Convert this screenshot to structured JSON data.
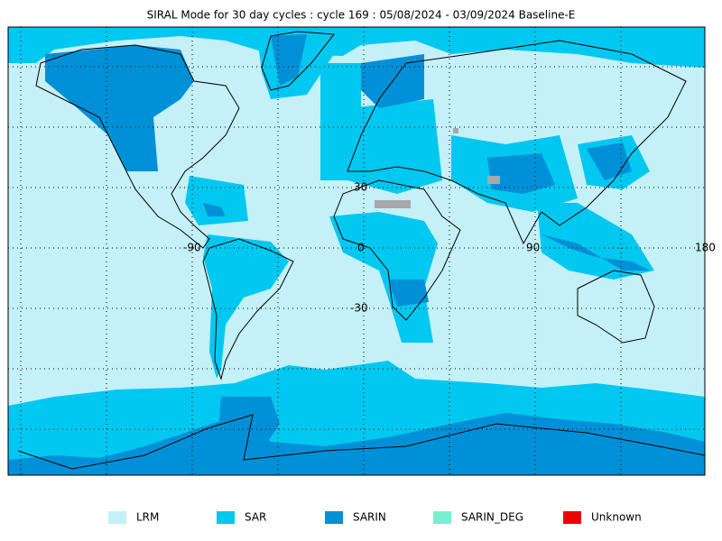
{
  "title": "SIRAL Mode for 30 day cycles : cycle 169 : 05/08/2024 - 03/09/2024 Baseline-E",
  "grid_labels": {
    "lat": [
      "30",
      "-30"
    ],
    "lon": [
      "-90",
      "0",
      "90",
      "180"
    ]
  },
  "legend": [
    {
      "label": "LRM",
      "color": "#c4f0f8"
    },
    {
      "label": "SAR",
      "color": "#00c8f0"
    },
    {
      "label": "SARIN",
      "color": "#0090d8"
    },
    {
      "label": "SARIN_DEG",
      "color": "#78f0d0"
    },
    {
      "label": "Unknown",
      "color": "#f00000"
    }
  ]
}
